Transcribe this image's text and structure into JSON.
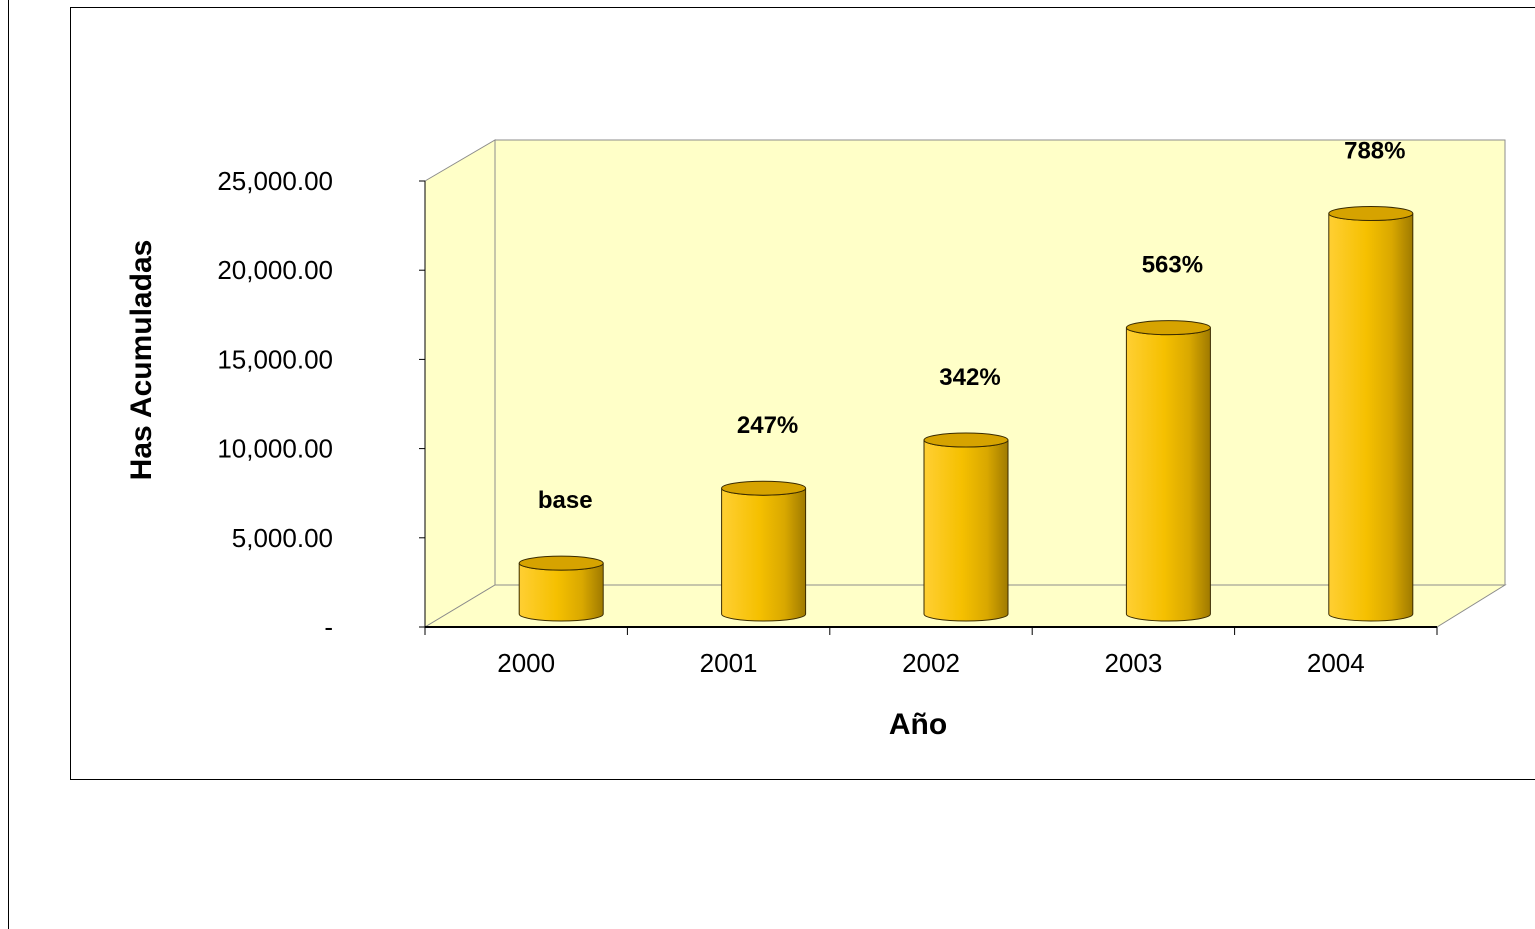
{
  "chart_data": {
    "type": "bar",
    "style": "3d-cylinder",
    "categories": [
      "2000",
      "2001",
      "2002",
      "2003",
      "2004"
    ],
    "series": [
      {
        "values": [
          2850,
          7050,
          9750,
          16050,
          22450
        ]
      }
    ],
    "data_labels": [
      "base",
      "247%",
      "342%",
      "563%",
      "788%"
    ],
    "xlabel": "Año",
    "ylabel": "Has Acumuladas",
    "ylim": [
      0,
      25000
    ],
    "yticks": [
      "-",
      "5,000.00",
      "10,000.00",
      "15,000.00",
      "20,000.00",
      "25,000.00"
    ],
    "grid": false,
    "legend": "none",
    "colors": {
      "wall": "#ffffc8",
      "floor": "#ffffc8",
      "bar_light": "#ffd23c",
      "bar_mid": "#f2bb00",
      "bar_dark": "#a47e00",
      "bar_top": "#d6a300"
    }
  }
}
